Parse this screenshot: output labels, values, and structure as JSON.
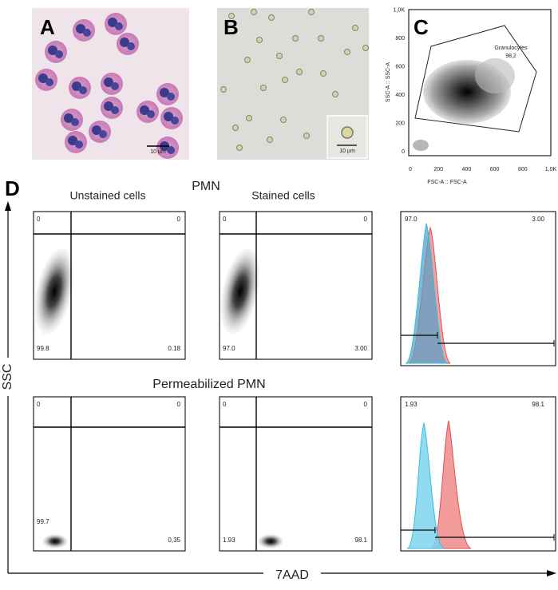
{
  "panels": {
    "A": {
      "label": "A",
      "scale_bar": "10 µm"
    },
    "B": {
      "label": "B",
      "scale_bar": "10 µm"
    },
    "C": {
      "label": "C",
      "gate": "Granulocytes",
      "gate_value": "98,2",
      "x_axis": "FSC-A :: FSC-A",
      "y_axis": "SSC-A :: SSC-A",
      "xticks": [
        "0",
        "200",
        "400",
        "600",
        "800",
        "1,0K"
      ],
      "yticks": [
        "0",
        "200",
        "400",
        "600",
        "800",
        "1,0K"
      ]
    },
    "D": {
      "label": "D",
      "y_axis": "SSC",
      "x_axis": "7AAD",
      "rows": [
        {
          "title": "PMN",
          "col_titles": [
            "Unstained cells",
            "Stained cells"
          ],
          "plots": [
            {
              "quadrants": [
                "0",
                "0",
                "99.8",
                "0.18"
              ]
            },
            {
              "quadrants": [
                "0",
                "0",
                "97.0",
                "3.00"
              ]
            }
          ],
          "histogram": [
            "97.0",
            "3.00"
          ]
        },
        {
          "title": "Permeabilized PMN",
          "plots": [
            {
              "quadrants": [
                "0",
                "0",
                "99.7",
                "0,35"
              ]
            },
            {
              "quadrants": [
                "0",
                "0",
                "1.93",
                "98.1"
              ]
            }
          ],
          "histogram": [
            "1.93",
            "98.1"
          ]
        }
      ]
    }
  }
}
